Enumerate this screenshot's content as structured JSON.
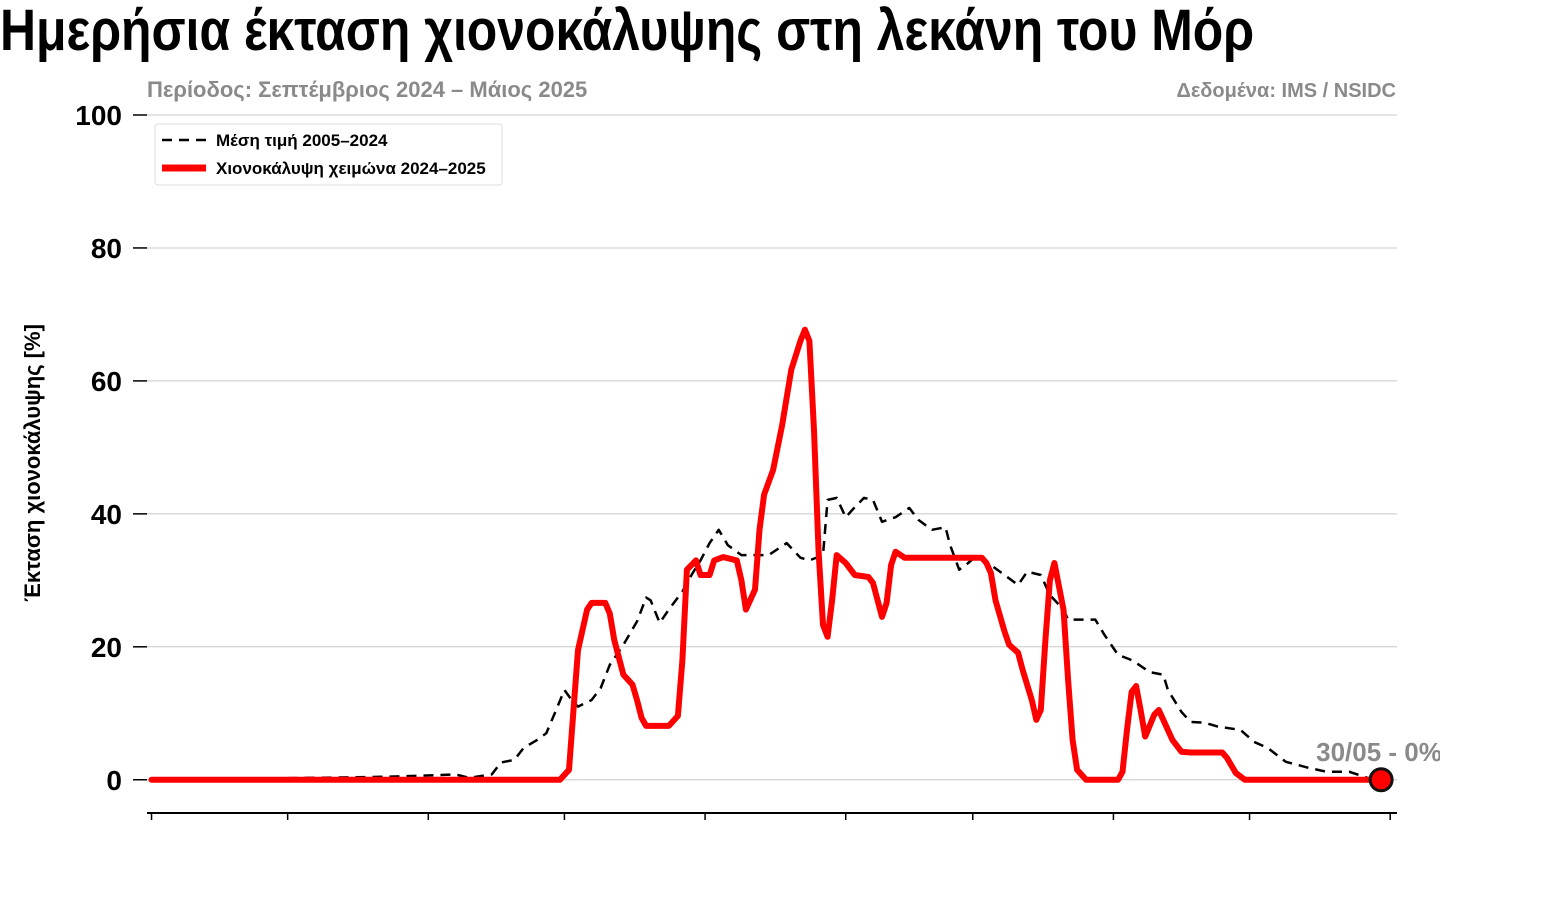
{
  "chart_data": {
    "type": "line",
    "title": "Ημερήσια έκταση χιονοκάλυψης στη λεκάνη του Μόρ",
    "subtitle": "Περίοδος: Σεπτέμβριος 2024 – Μάιος 2025",
    "source": "Δεδομένα: IMS / NSIDC",
    "y_label": "Έκταση χιονοκάλυψης [%]",
    "annotation": "30/05 - 0%",
    "xlim": [
      -1,
      274.5
    ],
    "xticks": [
      0,
      30,
      61,
      91,
      122,
      153,
      181,
      212,
      242,
      273
    ],
    "ylim": [
      -5,
      100
    ],
    "yticks": [
      0,
      20,
      40,
      60,
      80,
      100
    ],
    "grid": true,
    "legend": "upper left",
    "series": [
      {
        "name": "Μέση τιμή 2005–2024",
        "color": "#000000",
        "style": "dashed",
        "x": [
          0,
          48,
          59,
          67,
          70,
          75,
          77,
          80,
          82,
          85,
          87,
          89,
          91,
          93,
          94,
          97,
          99,
          101,
          104,
          107,
          109,
          110,
          112,
          114,
          117,
          119,
          121,
          123,
          125,
          127,
          130,
          132,
          136,
          140,
          143,
          145,
          148,
          149,
          151,
          153,
          155,
          157,
          159,
          161,
          164,
          167,
          169,
          172,
          175,
          176,
          178,
          180,
          182,
          185,
          188,
          191,
          193,
          196,
          198,
          201,
          202,
          208,
          210,
          213,
          216,
          217,
          220,
          223,
          224,
          227,
          229,
          232,
          235,
          240,
          243,
          246,
          250,
          255,
          259,
          264,
          268,
          270
        ],
        "values": [
          0,
          0.4,
          0.6,
          0.8,
          0.3,
          0.8,
          2.6,
          3,
          4.8,
          6,
          7,
          10.2,
          13.5,
          11.6,
          11,
          12,
          13.8,
          17.3,
          20.3,
          23.8,
          27.4,
          27,
          23.6,
          25.6,
          28.3,
          30.8,
          33,
          35.6,
          37.6,
          35.3,
          33.8,
          33.8,
          33.8,
          35.6,
          33.4,
          33,
          33.8,
          42.1,
          42.4,
          39.5,
          41,
          42.4,
          42.1,
          38.8,
          39.5,
          40.9,
          39.1,
          37.6,
          38,
          35.3,
          31.6,
          32.6,
          33.8,
          32.3,
          30.8,
          29.3,
          31.3,
          30.8,
          27.8,
          25.6,
          24.1,
          24.1,
          21.8,
          18.8,
          18,
          17.6,
          16.2,
          15.8,
          13.5,
          10.2,
          8.7,
          8.6,
          8,
          7.5,
          5.7,
          4.8,
          2.7,
          1.8,
          1.2,
          1.2,
          0.3,
          0
        ]
      },
      {
        "name": "Χιονοκάλυψη χειμώνα 2024–2025",
        "color": "#ff0000",
        "style": "solid",
        "x": [
          0,
          90,
          92,
          94,
          96,
          97,
          100,
          101,
          102,
          104,
          106,
          107,
          108,
          109,
          114,
          116,
          117,
          118,
          120,
          121,
          123,
          124,
          126,
          129,
          130,
          131,
          133,
          134,
          135,
          137,
          139,
          141,
          143,
          144,
          145,
          146,
          147,
          148,
          149,
          150,
          151,
          153,
          155,
          158,
          159,
          161,
          162,
          163,
          164,
          166,
          183,
          184,
          185,
          186,
          188,
          189,
          191,
          192,
          194,
          195,
          196,
          197,
          198,
          199,
          201,
          202,
          203,
          204,
          206,
          213,
          214,
          215,
          216,
          217,
          218,
          219,
          221,
          222,
          223,
          225,
          227,
          229,
          236,
          237,
          239,
          241,
          271
        ],
        "values": [
          0,
          0,
          1.5,
          19.5,
          25.6,
          26.6,
          26.6,
          25,
          21,
          15.8,
          14.3,
          12,
          9.3,
          8.1,
          8.1,
          9.6,
          18,
          31.6,
          33,
          30.8,
          30.8,
          33,
          33.5,
          33,
          30,
          25.6,
          28.6,
          37.6,
          42.9,
          46.6,
          53.4,
          61.7,
          66,
          67.7,
          66,
          52.6,
          34.6,
          23.3,
          21.5,
          27,
          33.8,
          32.6,
          30.8,
          30.5,
          29.6,
          24.5,
          26.6,
          32.3,
          34.3,
          33.4,
          33.4,
          32.6,
          31.1,
          27,
          22.3,
          20.3,
          19.1,
          16.5,
          12,
          9,
          10.5,
          21,
          30,
          32.6,
          25.6,
          15,
          6,
          1.5,
          0,
          0,
          1.2,
          7.5,
          13.2,
          14.1,
          10.5,
          6.5,
          9.8,
          10.5,
          9,
          6,
          4.2,
          4.1,
          4.1,
          3.3,
          1,
          0,
          0
        ]
      }
    ]
  }
}
